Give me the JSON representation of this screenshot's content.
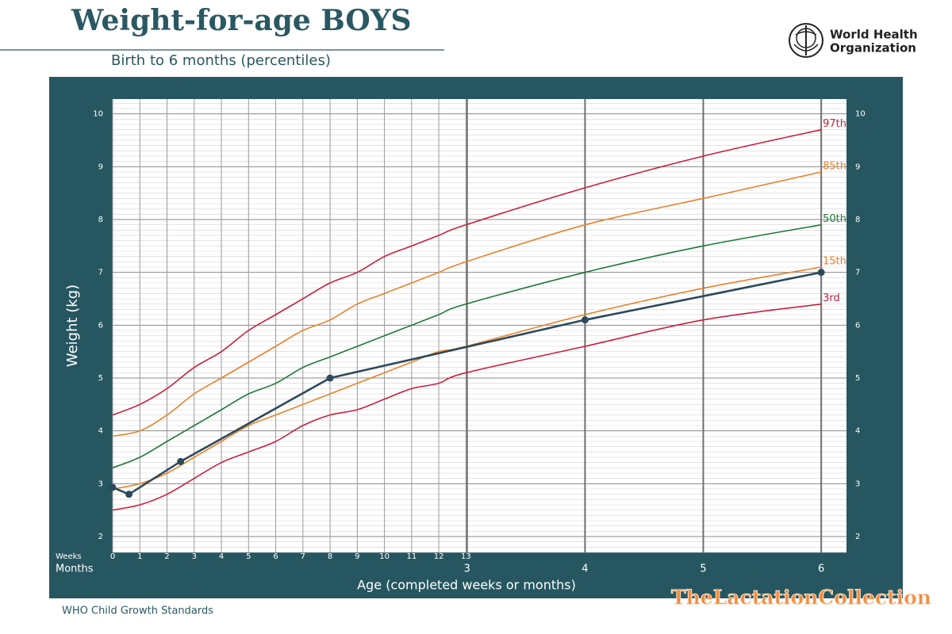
{
  "chart_data": {
    "type": "line",
    "title": "Weight-for-age BOYS",
    "subtitle": "Birth to 6 months (percentiles)",
    "y_label": "Weight (kg)",
    "x_label": "Age (completed weeks or months)",
    "weeks_label": "Weeks",
    "months_label": "Months",
    "footer": "WHO Child Growth Standards",
    "xlim": [
      0,
      27
    ],
    "ylim": [
      1.7,
      10.28
    ],
    "xticks": [
      0,
      1,
      2,
      3,
      4,
      5,
      6,
      7,
      8,
      9,
      10,
      11,
      12,
      13
    ],
    "month_ticks": [
      {
        "value": 13.04,
        "label": "3"
      },
      {
        "value": 17.38,
        "label": "4"
      },
      {
        "value": 21.73,
        "label": "5"
      },
      {
        "value": 26.07,
        "label": "6"
      }
    ],
    "yticks": [
      2,
      3,
      4,
      5,
      6,
      7,
      8,
      9,
      10
    ],
    "grid": true,
    "x": [
      0,
      1,
      2,
      3,
      4,
      5,
      6,
      7,
      8,
      9,
      10,
      11,
      12,
      13,
      17.38,
      21.73,
      26.07
    ],
    "series": [
      {
        "name": "97th",
        "color": "#c8203f",
        "values": [
          4.3,
          4.5,
          4.8,
          5.2,
          5.5,
          5.9,
          6.2,
          6.5,
          6.8,
          7.0,
          7.3,
          7.5,
          7.7,
          7.9,
          8.6,
          9.2,
          9.7
        ]
      },
      {
        "name": "85th",
        "color": "#e8822a",
        "values": [
          3.9,
          4.0,
          4.3,
          4.7,
          5.0,
          5.3,
          5.6,
          5.9,
          6.1,
          6.4,
          6.6,
          6.8,
          7.0,
          7.2,
          7.9,
          8.4,
          8.9
        ]
      },
      {
        "name": "50th",
        "color": "#1f7a3a",
        "values": [
          3.3,
          3.5,
          3.8,
          4.1,
          4.4,
          4.7,
          4.9,
          5.2,
          5.4,
          5.6,
          5.8,
          6.0,
          6.2,
          6.4,
          7.0,
          7.5,
          7.9
        ]
      },
      {
        "name": "15th",
        "color": "#e8822a",
        "values": [
          2.9,
          3.0,
          3.2,
          3.5,
          3.8,
          4.1,
          4.3,
          4.5,
          4.7,
          4.9,
          5.1,
          5.3,
          5.5,
          5.6,
          6.2,
          6.7,
          7.1
        ]
      },
      {
        "name": "3rd",
        "color": "#c8203f",
        "values": [
          2.5,
          2.6,
          2.8,
          3.1,
          3.4,
          3.6,
          3.8,
          4.1,
          4.3,
          4.4,
          4.6,
          4.8,
          4.9,
          5.1,
          5.6,
          6.1,
          6.4
        ]
      },
      {
        "color": "#2c4a5a",
        "x": [
          0,
          0.6,
          2.5,
          8,
          17.38,
          26.07
        ],
        "values": [
          2.93,
          2.8,
          3.42,
          5.0,
          6.1,
          7.0
        ]
      }
    ]
  },
  "who_logo": [
    "World Health",
    "Organization"
  ],
  "brand": "TheLactationCollection"
}
